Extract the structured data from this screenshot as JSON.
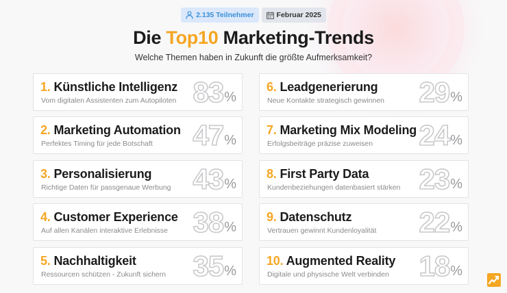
{
  "header": {
    "participants": "2.135 Teilnehmer",
    "date": "Februar 2025",
    "participants_icon": "person-icon",
    "date_icon": "calendar-icon"
  },
  "title": {
    "prefix": "Die ",
    "accent": "Top10",
    "suffix": " Marketing-Trends"
  },
  "subtitle": "Welche Themen haben in Zukunft die größte Aufmerksamkeit?",
  "colors": {
    "accent": "#f5a623",
    "pill_blue": "#3a8fd8"
  },
  "trends": [
    {
      "num": "1.",
      "name": "Künstliche Intelligenz",
      "desc": "Vom digitalen Assistenten zum Autopiloten",
      "value": "83",
      "unit": "%"
    },
    {
      "num": "2.",
      "name": "Marketing Automation",
      "desc": "Perfektes Timing für jede Botschaft",
      "value": "47",
      "unit": "%"
    },
    {
      "num": "3.",
      "name": "Personalisierung",
      "desc": "Richtige Daten für passgenaue Werbung",
      "value": "43",
      "unit": "%"
    },
    {
      "num": "4.",
      "name": "Customer Experience",
      "desc": "Auf allen Kanälen interaktive Erlebnisse",
      "value": "38",
      "unit": "%"
    },
    {
      "num": "5.",
      "name": "Nachhaltigkeit",
      "desc": "Ressourcen schützen - Zukunft sichern",
      "value": "35",
      "unit": "%"
    },
    {
      "num": "6.",
      "name": "Leadgenerierung",
      "desc": "Neue Kontakte strategisch gewinnen",
      "value": "29",
      "unit": "%"
    },
    {
      "num": "7.",
      "name": "Marketing Mix Modeling",
      "desc": "Erfolgsbeiträge präzise zuweisen",
      "value": "24",
      "unit": "%"
    },
    {
      "num": "8.",
      "name": "First Party Data",
      "desc": "Kundenbeziehungen datenbasiert stärken",
      "value": "23",
      "unit": "%"
    },
    {
      "num": "9.",
      "name": "Datenschutz",
      "desc": "Vertrauen gewinnt Kundenloyalität",
      "value": "22",
      "unit": "%"
    },
    {
      "num": "10.",
      "name": "Augmented Reality",
      "desc": "Digitale und physische Welt verbinden",
      "value": "18",
      "unit": "%"
    }
  ],
  "logo_icon": "trend-chart-icon"
}
